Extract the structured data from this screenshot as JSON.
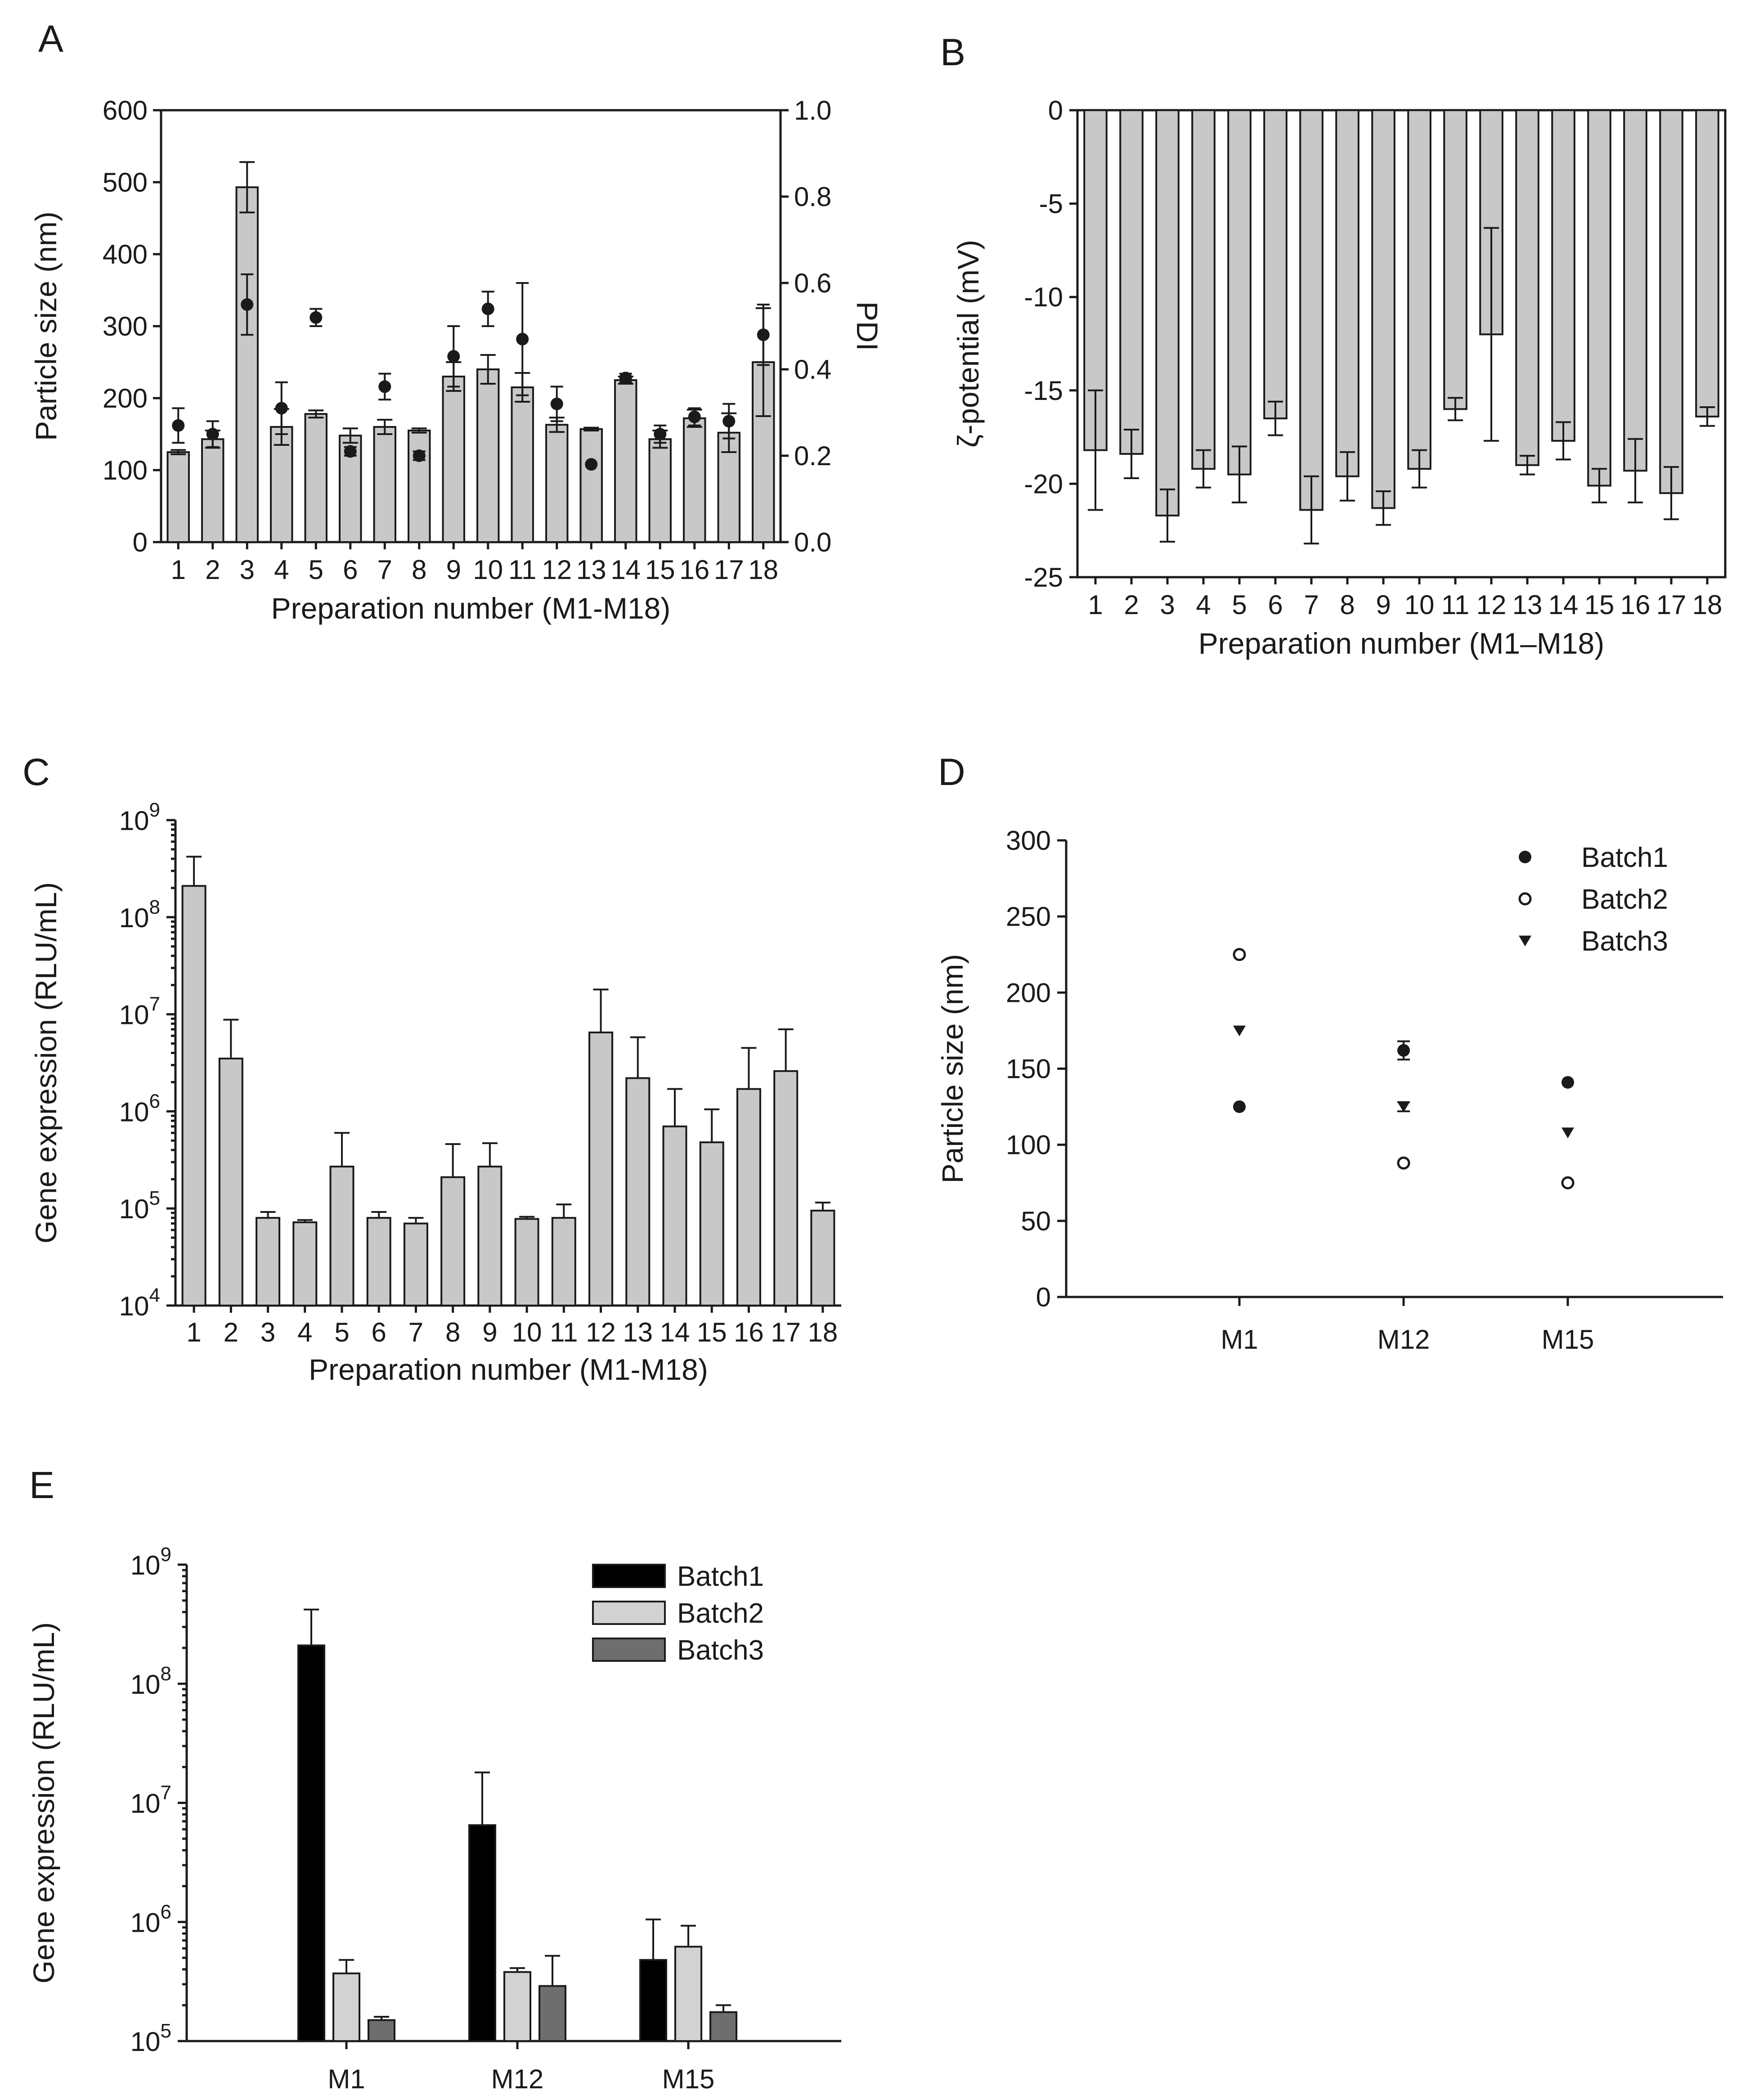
{
  "figure": {
    "panels": [
      "A",
      "B",
      "C",
      "D",
      "E"
    ]
  },
  "colors": {
    "bar_gray": "#c8c8c8",
    "batch1": "#000000",
    "batch2": "#d2d2d2",
    "batch3": "#6e6e6e",
    "ink": "#1a1a1a"
  },
  "chart_data": [
    {
      "panel": "A",
      "type": "bar",
      "xlabel": "Preparation number (M1-M18)",
      "ylabel": "Particle size (nm)",
      "y2label": "PDI",
      "categories": [
        "1",
        "2",
        "3",
        "4",
        "5",
        "6",
        "7",
        "8",
        "9",
        "10",
        "11",
        "12",
        "13",
        "14",
        "15",
        "16",
        "17",
        "18"
      ],
      "ylim": [
        0,
        600
      ],
      "yticks": [
        "0",
        "100",
        "200",
        "300",
        "400",
        "500",
        "600"
      ],
      "y2lim": [
        0,
        1.0
      ],
      "y2ticks": [
        "0.0",
        "0.2",
        "0.4",
        "0.6",
        "0.8",
        "1.0"
      ],
      "series": [
        {
          "kind": "bar",
          "axis": "left",
          "values": [
            125,
            143,
            493,
            160,
            178,
            148,
            160,
            155,
            230,
            240,
            215,
            163,
            157,
            225,
            143,
            172,
            152,
            250
          ],
          "errors": [
            3,
            12,
            35,
            25,
            5,
            10,
            10,
            3,
            20,
            20,
            20,
            10,
            2,
            5,
            12,
            12,
            27,
            75
          ]
        },
        {
          "kind": "point",
          "axis": "right",
          "values": [
            0.27,
            0.25,
            0.55,
            0.31,
            0.52,
            0.21,
            0.36,
            0.2,
            0.43,
            0.54,
            0.47,
            0.32,
            0.18,
            0.38,
            0.25,
            0.29,
            0.28,
            0.48
          ],
          "errors": [
            0.04,
            0.03,
            0.07,
            0.06,
            0.02,
            0.01,
            0.03,
            0.01,
            0.07,
            0.04,
            0.13,
            0.04,
            0.0,
            0.01,
            0.02,
            0.02,
            0.04,
            0.07
          ]
        }
      ]
    },
    {
      "panel": "B",
      "type": "bar",
      "xlabel": "Preparation number (M1–M18)",
      "ylabel": "ζ-potential (mV)",
      "categories": [
        "1",
        "2",
        "3",
        "4",
        "5",
        "6",
        "7",
        "8",
        "9",
        "10",
        "11",
        "12",
        "13",
        "14",
        "15",
        "16",
        "17",
        "18"
      ],
      "ylim": [
        -25,
        0
      ],
      "yticks": [
        "0",
        "-5",
        "-10",
        "-15",
        "-20",
        "-25"
      ],
      "values": [
        -18.2,
        -18.4,
        -21.7,
        -19.2,
        -19.5,
        -16.5,
        -21.4,
        -19.6,
        -21.3,
        -19.2,
        -16.0,
        -12.0,
        -19.0,
        -17.7,
        -20.1,
        -19.3,
        -20.5,
        -16.4
      ],
      "errors": [
        3.2,
        1.3,
        1.4,
        1.0,
        1.5,
        0.9,
        1.8,
        1.3,
        0.9,
        1.0,
        0.6,
        5.7,
        0.5,
        1.0,
        0.9,
        1.7,
        1.4,
        0.5
      ]
    },
    {
      "panel": "C",
      "type": "bar",
      "scale": "log",
      "xlabel": "Preparation number (M1-M18)",
      "ylabel": "Gene expression (RLU/mL)",
      "categories": [
        "1",
        "2",
        "3",
        "4",
        "5",
        "6",
        "7",
        "8",
        "9",
        "10",
        "11",
        "12",
        "13",
        "14",
        "15",
        "16",
        "17",
        "18"
      ],
      "ylim": [
        10000,
        1000000000
      ],
      "yticks": [
        "10^4",
        "10^5",
        "10^6",
        "10^7",
        "10^8",
        "10^9"
      ],
      "values": [
        210000000,
        3500000,
        80000,
        72000,
        270000,
        80000,
        70000,
        210000,
        270000,
        78000,
        80000,
        6500000,
        2200000,
        700000,
        480000,
        1700000,
        2600000,
        95000
      ],
      "err_top": [
        420000000,
        8800000,
        92000,
        76000,
        600000,
        92000,
        80000,
        460000,
        470000,
        82000,
        110000,
        18000000,
        5800000,
        1700000,
        1050000,
        4500000,
        7000000,
        115000
      ]
    },
    {
      "panel": "D",
      "type": "scatter",
      "ylabel": "Particle size (nm)",
      "categories": [
        "M1",
        "M12",
        "M15"
      ],
      "ylim": [
        0,
        300
      ],
      "yticks": [
        "0",
        "50",
        "100",
        "150",
        "200",
        "250",
        "300"
      ],
      "legend_position": "top-right",
      "series": [
        {
          "name": "Batch1",
          "marker": "filled-circle",
          "values": [
            125,
            162,
            141
          ],
          "errors": [
            0,
            6,
            0
          ]
        },
        {
          "name": "Batch2",
          "marker": "open-circle",
          "values": [
            225,
            88,
            75
          ],
          "errors": [
            0,
            0,
            0
          ]
        },
        {
          "name": "Batch3",
          "marker": "down-triangle",
          "values": [
            175,
            125,
            108
          ],
          "errors": [
            0,
            3,
            0
          ]
        }
      ]
    },
    {
      "panel": "E",
      "type": "bar",
      "scale": "log",
      "ylabel": "Gene expression (RLU/mL)",
      "categories": [
        "M1",
        "M12",
        "M15"
      ],
      "ylim": [
        100000,
        1000000000
      ],
      "yticks": [
        "10^5",
        "10^6",
        "10^7",
        "10^8",
        "10^9"
      ],
      "legend_position": "top-right",
      "series": [
        {
          "name": "Batch1",
          "values": [
            210000000,
            6500000,
            480000
          ],
          "err_top": [
            420000000,
            18000000,
            1050000
          ]
        },
        {
          "name": "Batch2",
          "values": [
            370000,
            380000,
            620000
          ],
          "err_top": [
            480000,
            410000,
            930000
          ]
        },
        {
          "name": "Batch3",
          "values": [
            150000,
            290000,
            175000
          ],
          "err_top": [
            160000,
            520000,
            200000
          ]
        }
      ]
    }
  ]
}
